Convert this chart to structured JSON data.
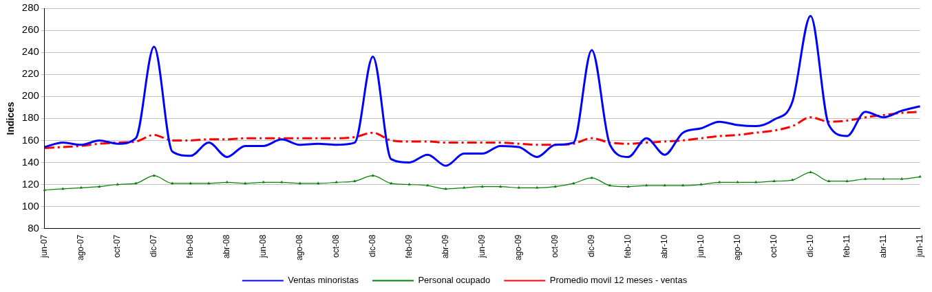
{
  "chart_data": {
    "type": "line",
    "ylabel": "Indices",
    "categories": [
      "jun-07",
      null,
      "ago-07",
      null,
      "oct-07",
      null,
      "dic-07",
      null,
      "feb-08",
      null,
      "abr-08",
      null,
      "jun-08",
      null,
      "ago-08",
      null,
      "oct-08",
      null,
      "dic-08",
      null,
      "feb-09",
      null,
      "abr-09",
      null,
      "jun-09",
      null,
      "ago-09",
      null,
      "oct-09",
      null,
      "dic-09",
      null,
      "feb-10",
      null,
      "abr-10",
      null,
      "jun-10",
      null,
      "ago-10",
      null,
      "oct-10",
      null,
      "dic-10",
      null,
      "feb-11",
      null,
      "abr-11",
      null,
      "jun-11"
    ],
    "series": [
      {
        "name": "Ventas minoristas",
        "color": "#0000ff",
        "marker": "none",
        "line_style": "solid",
        "values": [
          154,
          158,
          156,
          160,
          157,
          162,
          245,
          150,
          146,
          158,
          145,
          155,
          155,
          161,
          156,
          157,
          156,
          158,
          236,
          143,
          140,
          147,
          137,
          148,
          148,
          155,
          154,
          145,
          156,
          158,
          242,
          156,
          145,
          162,
          147,
          167,
          171,
          177,
          174,
          173,
          179,
          195,
          273,
          174,
          164,
          186,
          181,
          187,
          191
        ]
      },
      {
        "name": "Personal ocupado",
        "color": "#008000",
        "marker": "triangle",
        "line_style": "solid",
        "values": [
          115,
          116,
          117,
          118,
          120,
          121,
          128,
          121,
          121,
          121,
          122,
          121,
          122,
          122,
          121,
          121,
          122,
          123,
          128,
          121,
          120,
          119,
          116,
          117,
          118,
          118,
          117,
          117,
          118,
          121,
          126,
          119,
          118,
          119,
          119,
          119,
          120,
          122,
          122,
          122,
          123,
          124,
          131,
          123,
          123,
          125,
          125,
          125,
          127
        ]
      },
      {
        "name": "Promedio movil 12 meses - ventas",
        "color": "#ff0000",
        "marker": "none",
        "line_style": "dashdot",
        "values": [
          153,
          154,
          155,
          157,
          158,
          159,
          165,
          160,
          160,
          161,
          161,
          162,
          162,
          162,
          162,
          162,
          162,
          163,
          167,
          160,
          159,
          159,
          158,
          158,
          158,
          158,
          157,
          156,
          156,
          157,
          162,
          158,
          157,
          158,
          159,
          160,
          162,
          164,
          165,
          167,
          169,
          173,
          181,
          177,
          178,
          181,
          183,
          185,
          186
        ]
      }
    ],
    "ylim": [
      80,
      280
    ],
    "yticks": [
      80,
      100,
      120,
      140,
      160,
      180,
      200,
      220,
      240,
      260,
      280
    ],
    "grid": "y",
    "legend": "bottom"
  }
}
